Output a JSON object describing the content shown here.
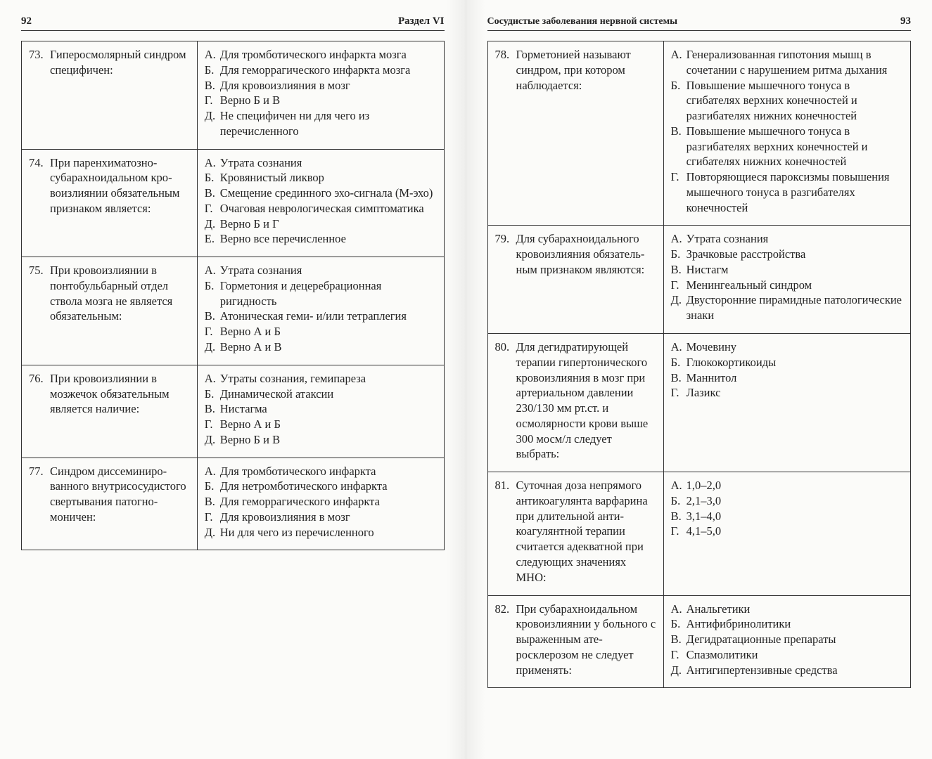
{
  "left": {
    "page_number": "92",
    "section_title": "Раздел VI",
    "questions": [
      {
        "num": "73.",
        "text": "Гиперосмолярный син­дром специфичен:",
        "answers": [
          {
            "l": "А.",
            "t": "Для тромботического инфаркта мозга"
          },
          {
            "l": "Б.",
            "t": "Для геморрагического инфаркта мозга"
          },
          {
            "l": "В.",
            "t": "Для кровоизлияния в мозг"
          },
          {
            "l": "Г.",
            "t": "Верно Б и В"
          },
          {
            "l": "Д.",
            "t": "Не специфичен ни для чего из перечисленного"
          }
        ]
      },
      {
        "num": "74.",
        "text": "При паренхиматозно-субарахноидальном кро­воизлиянии обязательным признаком является:",
        "answers": [
          {
            "l": "А.",
            "t": "Утрата сознания"
          },
          {
            "l": "Б.",
            "t": "Кровянистый ликвор"
          },
          {
            "l": "В.",
            "t": "Смещение срединного эхо-сигна­ла (М-эхо)"
          },
          {
            "l": "Г.",
            "t": "Очаговая неврологическая сим­птоматика"
          },
          {
            "l": "Д.",
            "t": "Верно Б и Г"
          },
          {
            "l": "Е.",
            "t": "Верно все перечисленное"
          }
        ]
      },
      {
        "num": "75.",
        "text": "При кровоизлиянии в понтобульбарный отдел ствола мозга не является обязательным:",
        "answers": [
          {
            "l": "А.",
            "t": "Утрата сознания"
          },
          {
            "l": "Б.",
            "t": "Горметония и децеребрационная ригидность"
          },
          {
            "l": "В.",
            "t": "Атоническая геми- и/или тетра­плегия"
          },
          {
            "l": "Г.",
            "t": "Верно А и Б"
          },
          {
            "l": "Д.",
            "t": "Верно А и В"
          }
        ]
      },
      {
        "num": "76.",
        "text": "При кровоизлиянии в мозжечок обязательным является наличие:",
        "answers": [
          {
            "l": "А.",
            "t": "Утраты сознания, гемипареза"
          },
          {
            "l": "Б.",
            "t": "Динамической атаксии"
          },
          {
            "l": "В.",
            "t": "Нистагма"
          },
          {
            "l": "Г.",
            "t": "Верно А и Б"
          },
          {
            "l": "Д.",
            "t": "Верно Б и В"
          }
        ]
      },
      {
        "num": "77.",
        "text": "Синдром диссеминиро­ванного внутрисосудисто­го свертывания патогно­моничен:",
        "answers": [
          {
            "l": "А.",
            "t": "Для тромботического инфаркта"
          },
          {
            "l": "Б.",
            "t": "Для нетромботического инфаркта"
          },
          {
            "l": "В.",
            "t": "Для геморрагического инфаркта"
          },
          {
            "l": "Г.",
            "t": "Для кровоизлияния в мозг"
          },
          {
            "l": "Д.",
            "t": "Ни для чего из перечисленного"
          }
        ]
      }
    ]
  },
  "right": {
    "page_number": "93",
    "chapter_title": "Сосудистые заболевания нервной системы",
    "questions": [
      {
        "num": "78.",
        "text": "Горметонией называют синдром, при котором наблюдается:",
        "answers": [
          {
            "l": "А.",
            "t": "Генерализованная гипотония мышц в сочетании с нарушением ритма дыхания"
          },
          {
            "l": "Б.",
            "t": "Повышение мышечного тону­са в сгибателях верхних конеч­ностей и разгибателях нижних конечностей"
          },
          {
            "l": "В.",
            "t": "Повышение мышечного тонуса в разгибателях верхних конечно­стей и сгибателях нижних конеч­ностей"
          },
          {
            "l": "Г.",
            "t": "Повторяющиеся пароксизмы повышения мышечного тонуса в разгибателях конечностей"
          }
        ]
      },
      {
        "num": "79.",
        "text": "Для субарахноидального кровоизлияния обязатель­ным признаком являются:",
        "answers": [
          {
            "l": "А.",
            "t": "Утрата сознания"
          },
          {
            "l": "Б.",
            "t": "Зрачковые расстройства"
          },
          {
            "l": "В.",
            "t": "Нистагм"
          },
          {
            "l": "Г.",
            "t": "Менингеальный синдром"
          },
          {
            "l": "Д.",
            "t": "Двусторонние пирамидные пато­логические знаки"
          }
        ]
      },
      {
        "num": "80.",
        "text": "Для дегидратирующей терапии гипертоническо­го кровоизлияния в мозг при артериальном дав­лении 230/130 мм рт.ст. и осмолярности крови выше 300 мосм/л следует выбрать:",
        "answers": [
          {
            "l": "А.",
            "t": "Мочевину"
          },
          {
            "l": "Б.",
            "t": "Глюкокортикоиды"
          },
          {
            "l": "В.",
            "t": "Маннитол"
          },
          {
            "l": "Г.",
            "t": "Лазикс"
          }
        ]
      },
      {
        "num": "81.",
        "text": "Суточная доза непрямого антикоагулянта варфари­на при длительной анти­коагулянтной терапии считается адекватной при следующих значениях МНО:",
        "answers": [
          {
            "l": "А.",
            "t": "1,0–2,0"
          },
          {
            "l": "Б.",
            "t": "2,1–3,0"
          },
          {
            "l": "В.",
            "t": "3,1–4,0"
          },
          {
            "l": "Г.",
            "t": "4,1–5,0"
          }
        ]
      },
      {
        "num": "82.",
        "text": "При субарахноидальном кровоизлиянии у боль­ного с выраженным ате­росклерозом не следует применять:",
        "answers": [
          {
            "l": "А.",
            "t": "Анальгетики"
          },
          {
            "l": "Б.",
            "t": "Антифибринолитики"
          },
          {
            "l": "В.",
            "t": "Дегидратационные препараты"
          },
          {
            "l": "Г.",
            "t": "Спазмолитики"
          },
          {
            "l": "Д.",
            "t": "Антигипертензивные средства"
          }
        ]
      }
    ]
  },
  "colors": {
    "text": "#222222",
    "border": "#333333",
    "page_bg": "#fbfbf9",
    "gutter_shadow": "#eeeeec"
  },
  "typography": {
    "body_font": "Times New Roman",
    "body_size_pt": 12,
    "header_size_pt": 11,
    "line_height": 1.32
  },
  "table_layout": {
    "question_col_width_pct": 41,
    "answer_col_width_pct": 59
  }
}
